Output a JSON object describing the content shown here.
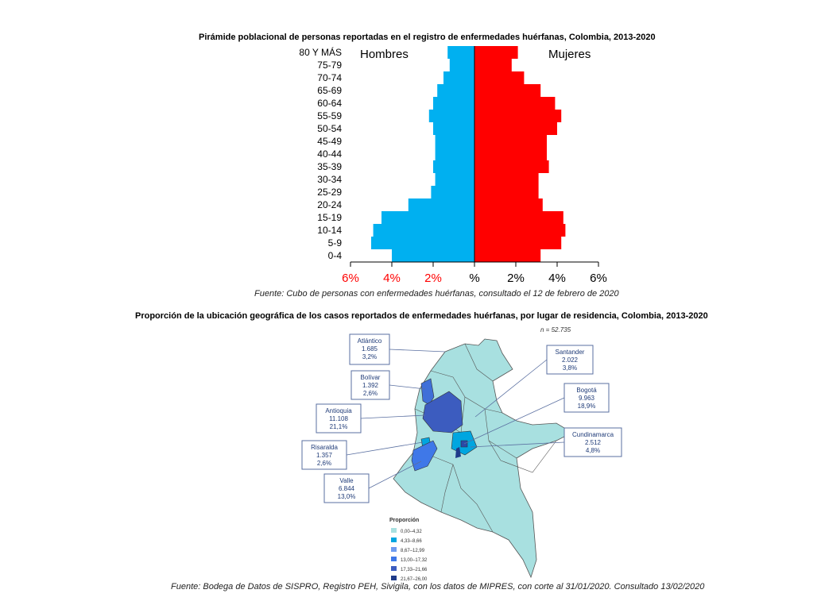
{
  "chart_data": [
    {
      "type": "bar",
      "orientation": "horizontal-pyramid",
      "title": "Pirámide poblacional de personas reportadas en el registro de enfermedades huérfanas, Colombia, 2013-2020",
      "categories": [
        "0-4",
        "5-9",
        "10-14",
        "15-19",
        "20-24",
        "25-29",
        "30-34",
        "35-39",
        "40-44",
        "45-49",
        "50-54",
        "55-59",
        "60-64",
        "65-69",
        "70-74",
        "75-79",
        "80 Y MÁS"
      ],
      "series": [
        {
          "name": "Hombres",
          "color": "#00b0f0",
          "values": [
            4.0,
            5.0,
            4.9,
            4.5,
            3.2,
            2.1,
            1.9,
            2.0,
            1.9,
            1.9,
            2.0,
            2.2,
            2.0,
            1.8,
            1.5,
            1.2,
            1.3
          ]
        },
        {
          "name": "Mujeres",
          "color": "#ff0000",
          "values": [
            3.2,
            4.2,
            4.4,
            4.3,
            3.3,
            3.1,
            3.1,
            3.6,
            3.5,
            3.5,
            4.0,
            4.2,
            3.9,
            3.2,
            2.4,
            1.8,
            2.1
          ]
        }
      ],
      "xticks": [
        "6%",
        "4%",
        "2%",
        "%",
        "2%",
        "4%",
        "6%"
      ],
      "xlim": [
        -6,
        6
      ],
      "source": "Fuente: Cubo de personas con enfermedades huérfanas, consultado el 12 de febrero de 2020"
    },
    {
      "type": "choropleth-map",
      "title": "Proporción de la ubicación geográfica de los casos reportados de enfermedades huérfanas, por lugar de residencia, Colombia, 2013-2020",
      "n": "n = 52.735",
      "regions": [
        {
          "name": "Atlántico",
          "cases": "1.685",
          "pct": "3,2%",
          "color": "#a8e0e0"
        },
        {
          "name": "Bolívar",
          "cases": "1.392",
          "pct": "2,6%",
          "color": "#3f6fd8"
        },
        {
          "name": "Antioquia",
          "cases": "11.108",
          "pct": "21,1%",
          "color": "#3c5cbf"
        },
        {
          "name": "Risaralda",
          "cases": "1.357",
          "pct": "2,6%",
          "color": "#00a6e0"
        },
        {
          "name": "Valle",
          "cases": "6.844",
          "pct": "13,0%",
          "color": "#3f78e8"
        },
        {
          "name": "Santander",
          "cases": "2.022",
          "pct": "3,8%",
          "color": "#a8e0e0"
        },
        {
          "name": "Bogotá",
          "cases": "9.963",
          "pct": "18,9%",
          "color": "#2a4aa8"
        },
        {
          "name": "Cundinamarca",
          "cases": "2.512",
          "pct": "4,8%",
          "color": "#00a6e0"
        }
      ],
      "legend": {
        "title": "Proporción",
        "items": [
          {
            "label": "0,00–4,32",
            "color": "#a8e0e0"
          },
          {
            "label": "4,33–8,66",
            "color": "#00a6e0"
          },
          {
            "label": "8,67–12,99",
            "color": "#6f9cf0"
          },
          {
            "label": "13,00–17,32",
            "color": "#3f78e8"
          },
          {
            "label": "17,33–21,66",
            "color": "#3c5cbf"
          },
          {
            "label": "21,67–26,00",
            "color": "#1f3b8a"
          }
        ]
      },
      "source": "Fuente: Bodega de Datos de SISPRO, Registro PEH, Sivigila, con los datos de MIPRES, con corte al 31/01/2020. Consultado 13/02/2020"
    }
  ]
}
